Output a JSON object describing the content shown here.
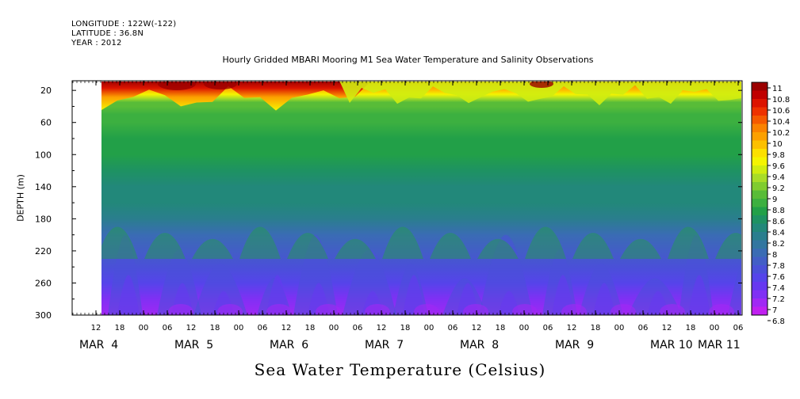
{
  "header": {
    "longitude": "LONGITUDE : 122W(-122)",
    "latitude": "LATITUDE : 36.8N",
    "year": "YEAR : 2012"
  },
  "chart_data": {
    "type": "heatmap",
    "title": "Hourly Gridded MBARI Mooring M1 Sea Water Temperature and Salinity Observations",
    "ylabel": "DEPTH (m)",
    "units_label": "Sea Water Temperature (Celsius)",
    "y_axis": {
      "ticks": [
        20,
        60,
        100,
        140,
        180,
        220,
        260
      ],
      "bottom_label": 300,
      "range": [
        10,
        300
      ],
      "inverted": true
    },
    "x_axis": {
      "hour_ticks": [
        "12",
        "18",
        "00",
        "06",
        "12",
        "18",
        "00",
        "06",
        "12",
        "18",
        "00",
        "06",
        "12",
        "18",
        "00",
        "06",
        "12",
        "18",
        "00",
        "06",
        "12",
        "18",
        "00",
        "06",
        "12",
        "18",
        "00",
        "06",
        "12",
        "18",
        "00",
        "06",
        "12",
        "18",
        "00",
        "06"
      ],
      "day_labels": [
        "MAR  4",
        "MAR  5",
        "MAR  6",
        "MAR  7",
        "MAR  8",
        "MAR  9",
        "MAR 10",
        "MAR 11"
      ],
      "data_start": "MAR 4 15:00",
      "data_end": "MAR 11 08:00"
    },
    "colorbar": {
      "labels": [
        "11",
        "10.8",
        "10.6",
        "10.4",
        "10.2",
        "10",
        "9.8",
        "9.6",
        "9.4",
        "9.2",
        "9",
        "8.8",
        "8.6",
        "8.4",
        "8.2",
        "8",
        "7.8",
        "7.6",
        "7.4",
        "7.2",
        "7",
        "6.8"
      ],
      "colors": [
        "#9b0000",
        "#c00000",
        "#dc1400",
        "#ee3200",
        "#f55a00",
        "#fa8200",
        "#fca000",
        "#fcc000",
        "#fce000",
        "#f4f400",
        "#d0ec10",
        "#a8dc28",
        "#80cc30",
        "#58bc38",
        "#3cb040",
        "#22a048",
        "#1e9262",
        "#22887a",
        "#2a7e8e",
        "#3276a0",
        "#3a6cb4",
        "#425ec6",
        "#4a50d8",
        "#5544ea",
        "#6638f0",
        "#8030f4",
        "#a028f4",
        "#c020f0"
      ],
      "range": [
        6.8,
        11
      ]
    },
    "profile": {
      "depths": [
        10,
        15,
        20,
        25,
        30,
        35,
        40,
        50,
        60,
        80,
        100,
        120,
        140,
        160,
        180,
        200,
        220,
        240,
        260,
        280,
        300
      ],
      "mean_temperature": [
        10.3,
        10.1,
        9.9,
        9.6,
        9.3,
        9.0,
        8.9,
        8.85,
        8.8,
        8.75,
        8.7,
        8.6,
        8.45,
        8.3,
        8.15,
        7.95,
        7.8,
        7.6,
        7.45,
        7.25,
        7.0
      ],
      "time_trend": "surface warmer (10-11) on MAR 4-6, cooler (9.4-9.8) from MAR 7 onward"
    }
  }
}
